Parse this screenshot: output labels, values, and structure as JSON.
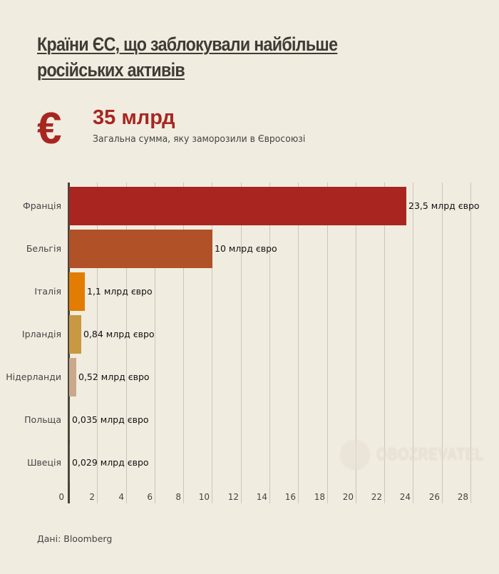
{
  "header": {
    "title": "Країни ЄС, що заблокували найбільше російських активів",
    "euro_icon": "€",
    "total_value": "35 млрд",
    "total_caption": "Загальна сумма, яку заморозили в Євросоюзі"
  },
  "footer": {
    "source": "Дані: Bloomberg"
  },
  "watermark": {
    "text": "OBOZREVATEL"
  },
  "colors": {
    "background": "#f1ece0",
    "accent": "#a82620",
    "bars": [
      "#a8261f",
      "#b05128",
      "#e37c03",
      "#c99842",
      "#c9a88c",
      "#5c5a38",
      "#5c5a38"
    ]
  },
  "chart_data": {
    "type": "bar",
    "orientation": "horizontal",
    "title": "Країни ЄС, що заблокували найбільше російських активів",
    "categories": [
      "Франція",
      "Бельгія",
      "Італія",
      "Ірландія",
      "Нідерланди",
      "Польща",
      "Швеція"
    ],
    "values": [
      23.5,
      10,
      1.1,
      0.84,
      0.52,
      0.035,
      0.029
    ],
    "value_labels": [
      "23,5 млрд євро",
      "10 млрд євро",
      "1,1 млрд євро",
      "0,84 млрд євро",
      "0,52 млрд євро",
      "0,035 млрд євро",
      "0,029 млрд євро"
    ],
    "xlabel": "",
    "ylabel": "",
    "xlim": [
      0,
      29
    ],
    "xticks": [
      "0",
      "2",
      "4",
      "6",
      "8",
      "10",
      "12",
      "14",
      "16",
      "18",
      "20",
      "22",
      "24",
      "26",
      "28"
    ],
    "grid": true,
    "unit": "млрд євро"
  }
}
